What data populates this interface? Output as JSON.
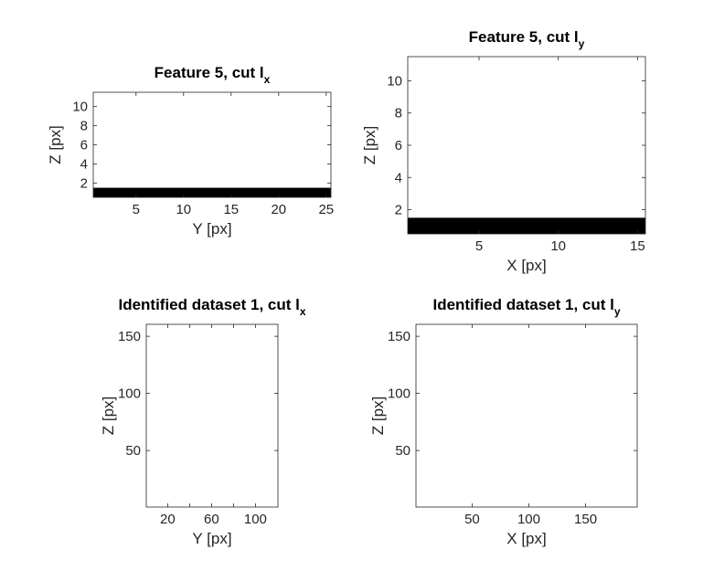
{
  "figure": {
    "background": "#ffffff"
  },
  "colors": {
    "axis": "#262626",
    "fill": "#000000",
    "background": "#ffffff"
  },
  "chart_data": [
    {
      "type": "heatmap",
      "title": "Feature 5, cut l",
      "title_subscript": "x",
      "xlabel": "Y [px]",
      "ylabel": "Z [px]",
      "xlim": [
        0.5,
        25.5
      ],
      "ylim": [
        0.5,
        11.5
      ],
      "xticks": [
        5,
        10,
        15,
        20,
        25
      ],
      "yticks": [
        2,
        4,
        6,
        8,
        10
      ],
      "grid": false,
      "filled_region": {
        "x": [
          0.5,
          25.5
        ],
        "y": [
          0.5,
          1.5
        ],
        "color": "#000000"
      }
    },
    {
      "type": "heatmap",
      "title": "Feature 5, cut l",
      "title_subscript": "y",
      "xlabel": "X [px]",
      "ylabel": "Z [px]",
      "xlim": [
        0.5,
        15.5
      ],
      "ylim": [
        0.5,
        11.5
      ],
      "xticks": [
        5,
        10,
        15
      ],
      "yticks": [
        2,
        4,
        6,
        8,
        10
      ],
      "grid": false,
      "filled_region": {
        "x": [
          0.5,
          15.5
        ],
        "y": [
          0.5,
          1.5
        ],
        "color": "#000000"
      }
    },
    {
      "type": "heatmap",
      "title": "Identified dataset 1, cut l",
      "title_subscript": "x",
      "xlabel": "Y [px]",
      "ylabel": "Z [px]",
      "xlim": [
        0.5,
        120.5
      ],
      "ylim": [
        0.5,
        160.5
      ],
      "xticks": [
        20,
        60,
        100
      ],
      "minor_xticks": [
        40,
        80
      ],
      "yticks": [
        50,
        100,
        150
      ],
      "grid": false,
      "filled_region": null
    },
    {
      "type": "heatmap",
      "title": "Identified dataset 1, cut l",
      "title_subscript": "y",
      "xlabel": "X [px]",
      "ylabel": "Z [px]",
      "xlim": [
        0.5,
        195.5
      ],
      "ylim": [
        0.5,
        160.5
      ],
      "xticks": [
        50,
        100,
        150
      ],
      "yticks": [
        50,
        100,
        150
      ],
      "grid": false,
      "filled_region": null
    }
  ]
}
